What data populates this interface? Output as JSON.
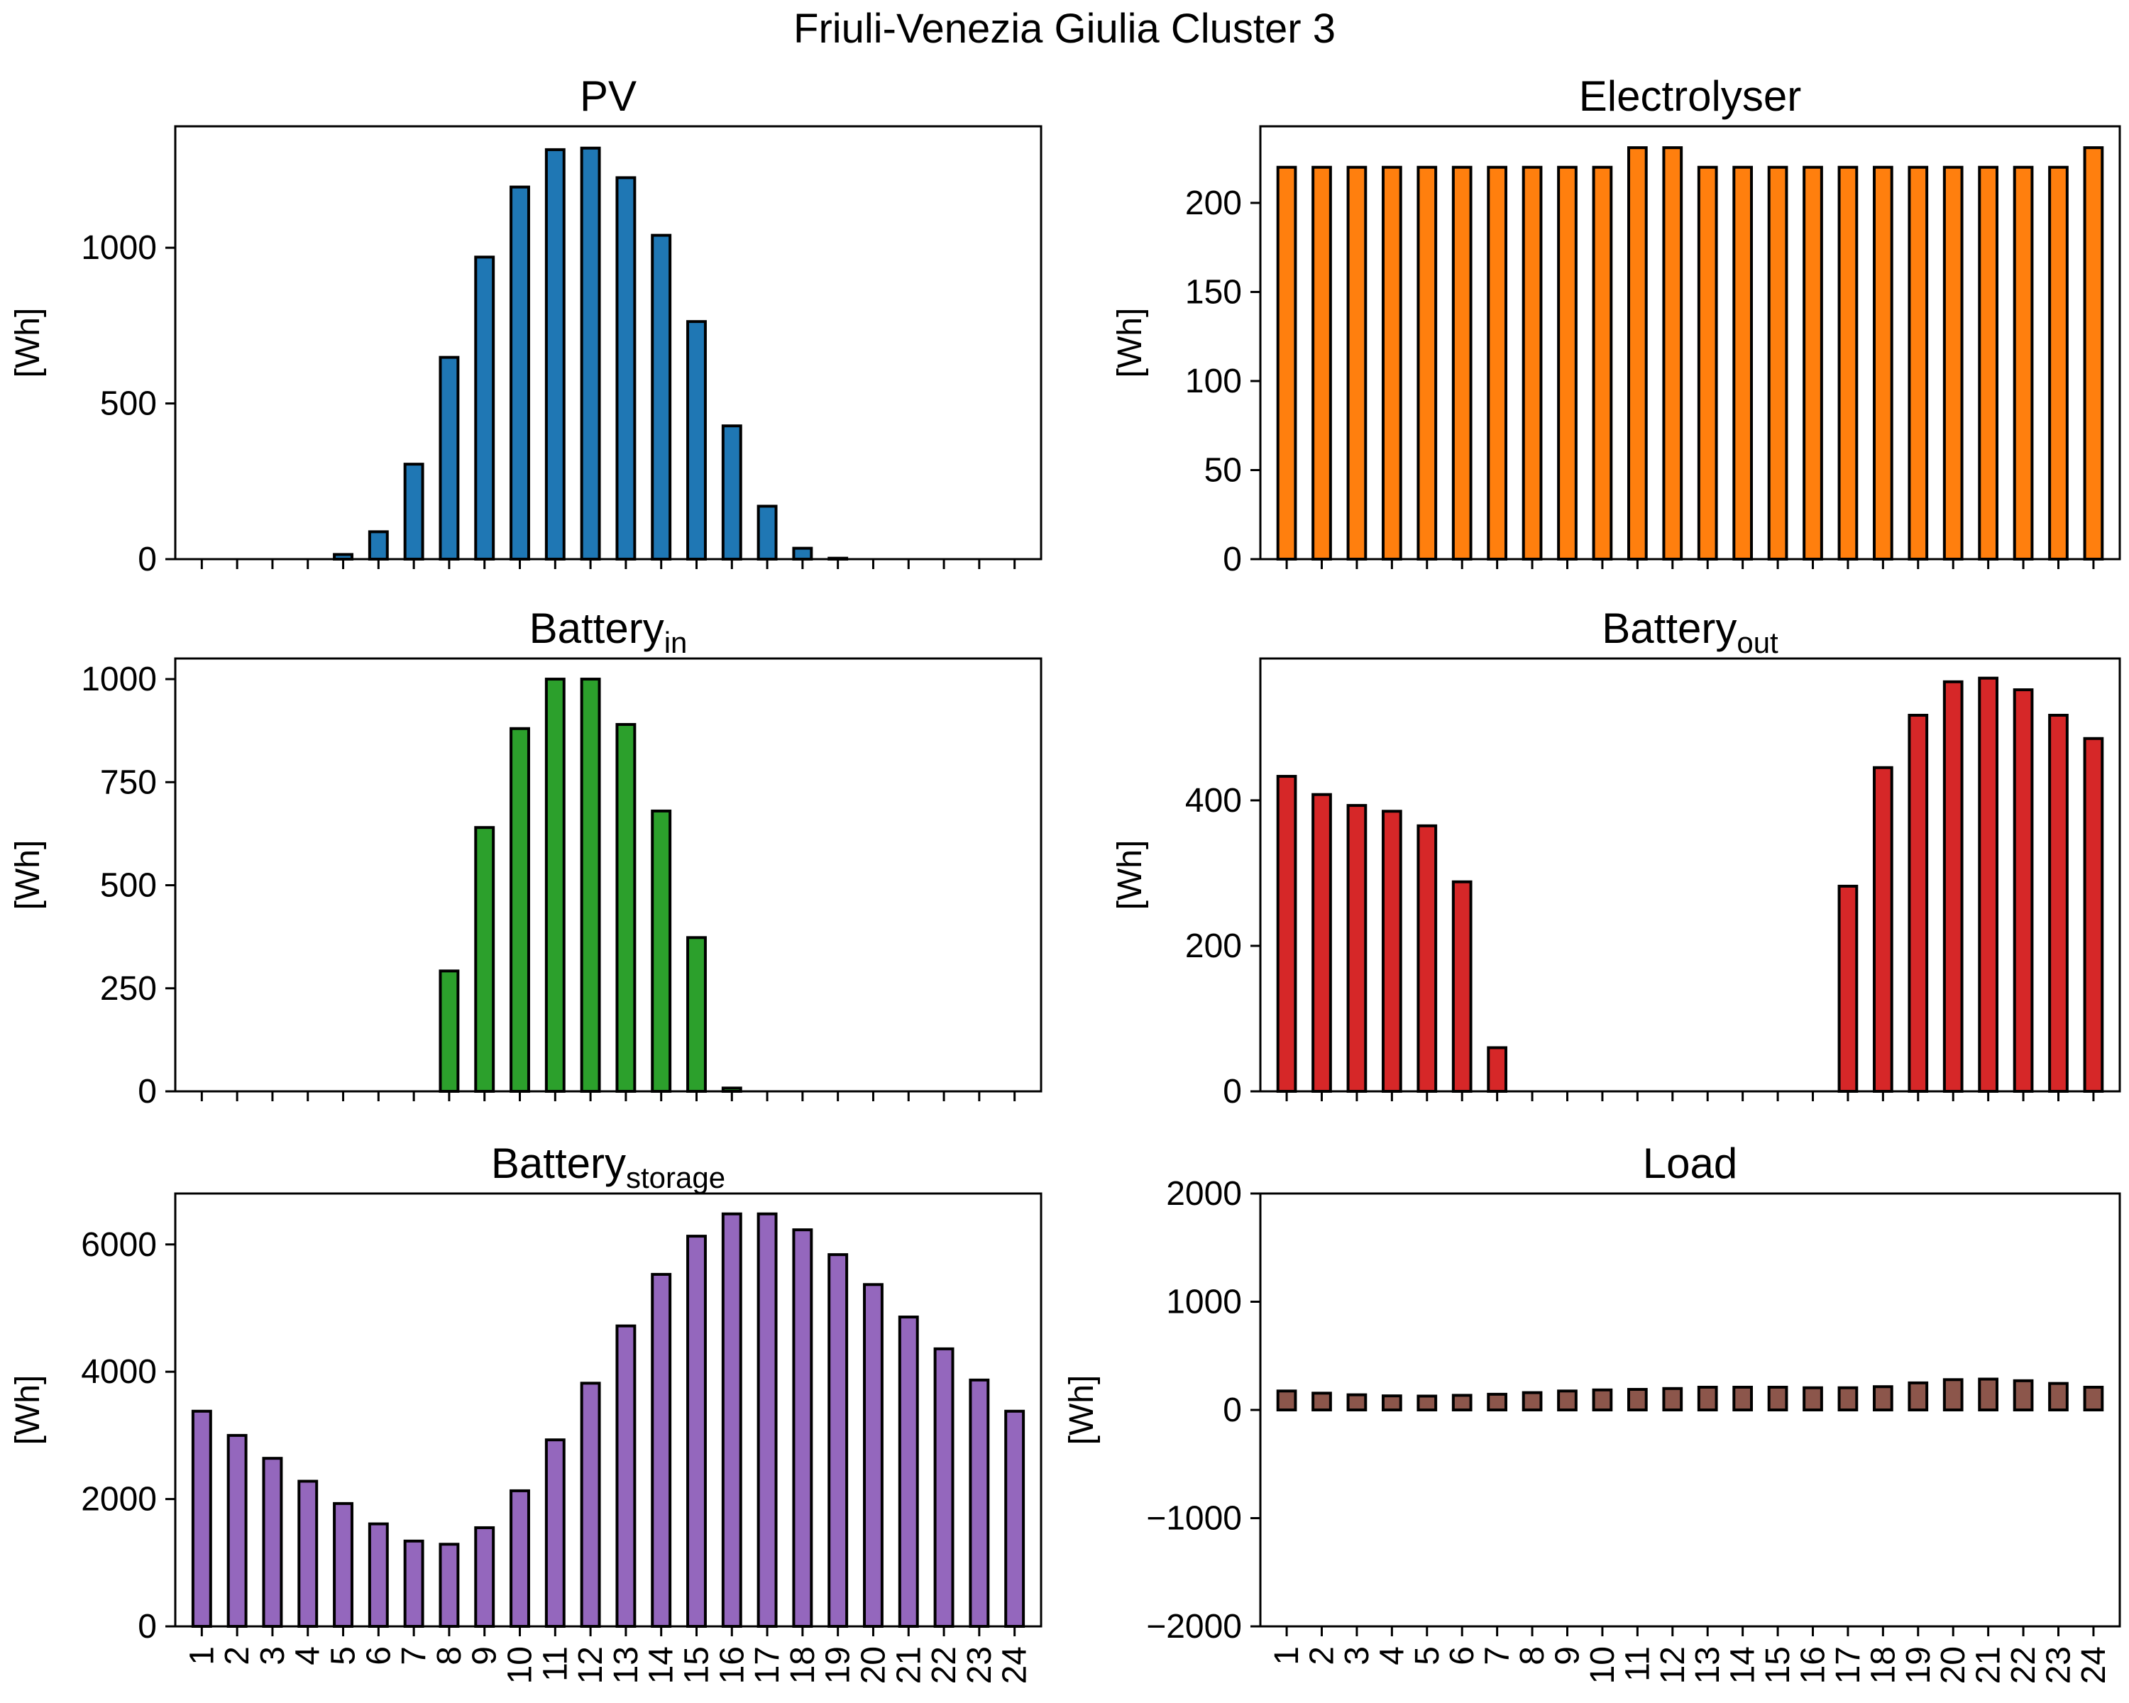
{
  "figure": {
    "title": "Friuli-Venezia Giulia Cluster 3"
  },
  "chart_data": [
    {
      "type": "bar",
      "title": "PV",
      "ylabel": "[Wh]",
      "ylim": [
        0,
        1390
      ],
      "yticks": [
        0,
        500,
        1000
      ],
      "color": "#1f77b4",
      "categories": [
        "1",
        "2",
        "3",
        "4",
        "5",
        "6",
        "7",
        "8",
        "9",
        "10",
        "11",
        "12",
        "13",
        "14",
        "15",
        "16",
        "17",
        "18",
        "19",
        "20",
        "21",
        "22",
        "23",
        "24"
      ],
      "values": [
        0,
        0,
        0,
        0,
        15,
        88,
        305,
        648,
        970,
        1195,
        1315,
        1320,
        1225,
        1040,
        763,
        428,
        170,
        35,
        3,
        0,
        0,
        0,
        0,
        0
      ],
      "show_xticklabels": false
    },
    {
      "type": "bar",
      "title": "Electrolyser",
      "ylabel": "[Wh]",
      "ylim": [
        0,
        243
      ],
      "yticks": [
        0,
        50,
        100,
        150,
        200
      ],
      "color": "#ff7f0e",
      "categories": [
        "1",
        "2",
        "3",
        "4",
        "5",
        "6",
        "7",
        "8",
        "9",
        "10",
        "11",
        "12",
        "13",
        "14",
        "15",
        "16",
        "17",
        "18",
        "19",
        "20",
        "21",
        "22",
        "23",
        "24"
      ],
      "values": [
        220,
        220,
        220,
        220,
        220,
        220,
        220,
        220,
        220,
        220,
        231,
        231,
        220,
        220,
        220,
        220,
        220,
        220,
        220,
        220,
        220,
        220,
        220,
        231
      ],
      "show_xticklabels": false
    },
    {
      "type": "bar",
      "title": "Battery",
      "title_sub": "in",
      "ylabel": "[Wh]",
      "ylim": [
        0,
        1050
      ],
      "yticks": [
        0,
        250,
        500,
        750,
        1000
      ],
      "color": "#2ca02c",
      "categories": [
        "1",
        "2",
        "3",
        "4",
        "5",
        "6",
        "7",
        "8",
        "9",
        "10",
        "11",
        "12",
        "13",
        "14",
        "15",
        "16",
        "17",
        "18",
        "19",
        "20",
        "21",
        "22",
        "23",
        "24"
      ],
      "values": [
        0,
        0,
        0,
        0,
        0,
        0,
        0,
        292,
        640,
        880,
        1000,
        1000,
        890,
        680,
        373,
        8,
        0,
        0,
        0,
        0,
        0,
        0,
        0,
        0
      ],
      "show_xticklabels": false
    },
    {
      "type": "bar",
      "title": "Battery",
      "title_sub": "out",
      "ylabel": "[Wh]",
      "ylim": [
        0,
        595
      ],
      "yticks": [
        0,
        200,
        400
      ],
      "color": "#d62728",
      "categories": [
        "1",
        "2",
        "3",
        "4",
        "5",
        "6",
        "7",
        "8",
        "9",
        "10",
        "11",
        "12",
        "13",
        "14",
        "15",
        "16",
        "17",
        "18",
        "19",
        "20",
        "21",
        "22",
        "23",
        "24"
      ],
      "values": [
        433,
        408,
        393,
        385,
        365,
        288,
        60,
        0,
        0,
        0,
        0,
        0,
        0,
        0,
        0,
        0,
        282,
        445,
        517,
        563,
        568,
        552,
        517,
        485
      ],
      "show_xticklabels": false
    },
    {
      "type": "bar",
      "title": "Battery",
      "title_sub": "storage",
      "ylabel": "[Wh]",
      "ylim": [
        0,
        6800
      ],
      "yticks": [
        0,
        2000,
        4000,
        6000
      ],
      "color": "#9467bd",
      "categories": [
        "1",
        "2",
        "3",
        "4",
        "5",
        "6",
        "7",
        "8",
        "9",
        "10",
        "11",
        "12",
        "13",
        "14",
        "15",
        "16",
        "17",
        "18",
        "19",
        "20",
        "21",
        "22",
        "23",
        "24"
      ],
      "values": [
        3380,
        3000,
        2640,
        2280,
        1930,
        1610,
        1340,
        1290,
        1550,
        2130,
        2930,
        3820,
        4720,
        5530,
        6130,
        6480,
        6480,
        6230,
        5840,
        5370,
        4860,
        4360,
        3870,
        3380
      ],
      "show_xticklabels": true
    },
    {
      "type": "bar",
      "title": "Load",
      "ylabel": "[Wh]",
      "ylim": [
        -2000,
        2000
      ],
      "yticks": [
        -2000,
        -1000,
        0,
        1000,
        2000
      ],
      "ytick_labels": [
        "−2000",
        "−1000",
        "0",
        "1000",
        "2000"
      ],
      "color": "#8c564b",
      "categories": [
        "1",
        "2",
        "3",
        "4",
        "5",
        "6",
        "7",
        "8",
        "9",
        "10",
        "11",
        "12",
        "13",
        "14",
        "15",
        "16",
        "17",
        "18",
        "19",
        "20",
        "21",
        "22",
        "23",
        "24"
      ],
      "values": [
        175,
        155,
        140,
        130,
        128,
        135,
        145,
        160,
        175,
        185,
        190,
        198,
        210,
        210,
        210,
        205,
        205,
        215,
        250,
        280,
        285,
        270,
        245,
        210
      ],
      "show_xticklabels": true
    }
  ]
}
